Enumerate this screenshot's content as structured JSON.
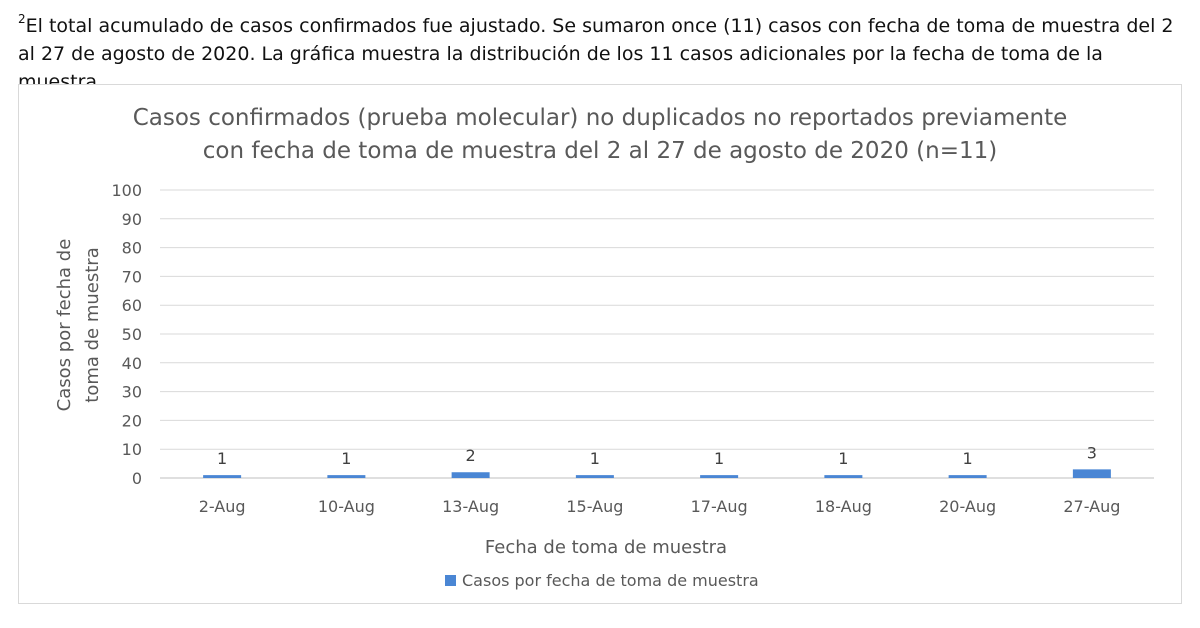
{
  "footnote": {
    "marker": "2",
    "text": "El total acumulado de casos confirmados fue ajustado. Se sumaron once (11) casos con fecha de toma de muestra del 2 al 27 de agosto de 2020. La gráfica muestra la distribución de los 11 casos adicionales por la fecha de toma de la muestra."
  },
  "chart_data": {
    "type": "bar",
    "title_line1": "Casos confirmados (prueba molecular) no duplicados no reportados previamente",
    "title_line2": "con fecha de toma de muestra del 2 al 27 de agosto de 2020 (n=11)",
    "xlabel": "Fecha de toma de muestra",
    "ylabel_line1": "Casos por fecha de",
    "ylabel_line2": "toma de muestra",
    "categories": [
      "2-Aug",
      "10-Aug",
      "13-Aug",
      "15-Aug",
      "17-Aug",
      "18-Aug",
      "20-Aug",
      "27-Aug"
    ],
    "series": [
      {
        "name": "Casos por fecha de toma de muestra",
        "values": [
          1,
          1,
          2,
          1,
          1,
          1,
          1,
          3
        ],
        "color": "#4a86d4"
      }
    ],
    "ylim": [
      0,
      100
    ],
    "yticks": [
      0,
      10,
      20,
      30,
      40,
      50,
      60,
      70,
      80,
      90,
      100
    ],
    "grid": true,
    "data_labels": true,
    "legend_position": "bottom"
  }
}
